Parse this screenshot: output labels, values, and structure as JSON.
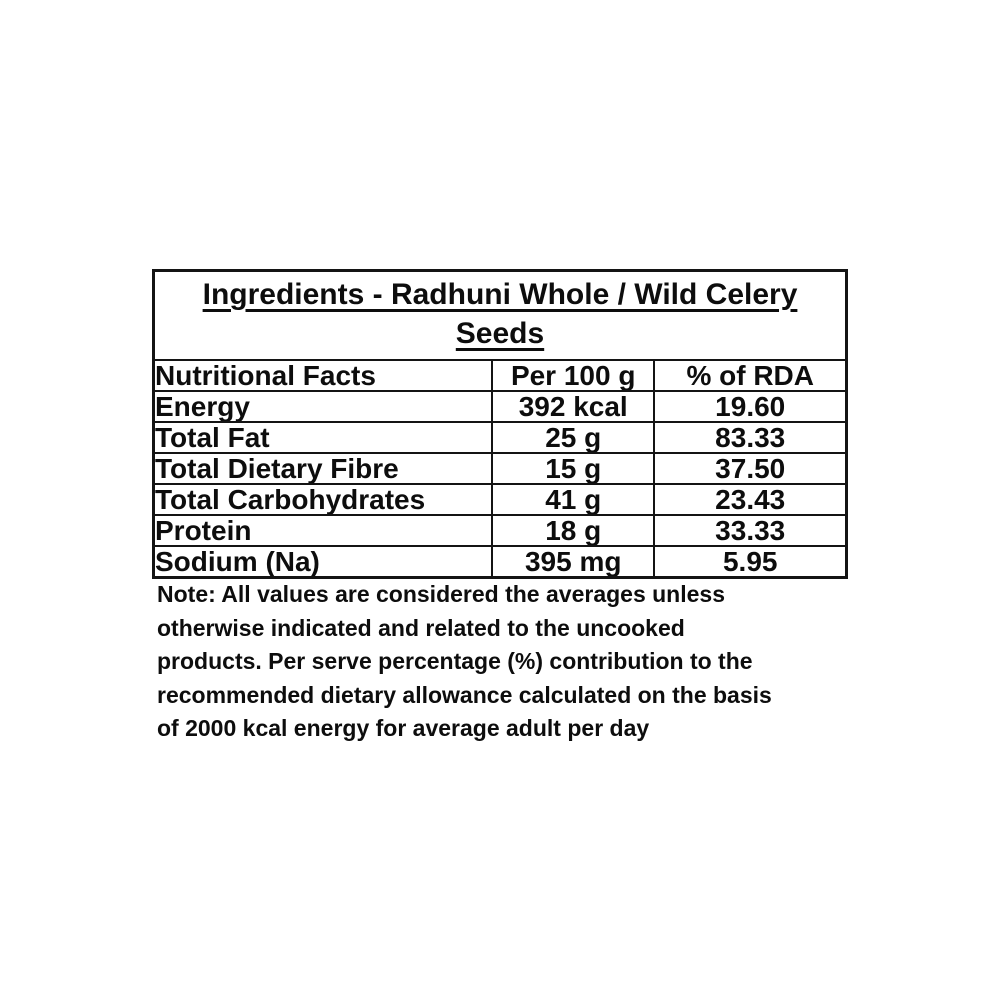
{
  "title": {
    "line1": "Ingredients - Radhuni Whole / Wild Celery",
    "line2": "Seeds"
  },
  "table": {
    "headers": [
      "Nutritional Facts",
      "Per 100 g",
      "% of RDA"
    ],
    "rows": [
      {
        "fact": "Energy",
        "per100g": "392 kcal",
        "rda": "19.60"
      },
      {
        "fact": "Total Fat",
        "per100g": "25 g",
        "rda": "83.33"
      },
      {
        "fact": "Total Dietary Fibre",
        "per100g": "15 g",
        "rda": "37.50"
      },
      {
        "fact": "Total Carbohydrates",
        "per100g": "41 g",
        "rda": "23.43"
      },
      {
        "fact": "Protein",
        "per100g": "18 g",
        "rda": "33.33"
      },
      {
        "fact": "Sodium (Na)",
        "per100g": "395 mg",
        "rda": "5.95"
      }
    ]
  },
  "note_lines": [
    "Note: All values are considered the averages unless",
    "otherwise indicated and related to the uncooked",
    "products. Per serve percentage (%) contribution to the",
    "recommended dietary allowance calculated on the basis",
    "of 2000 kcal energy for average adult per day"
  ],
  "colors": {
    "text": "#0d0d0d",
    "border": "#141414",
    "background": "#ffffff"
  }
}
